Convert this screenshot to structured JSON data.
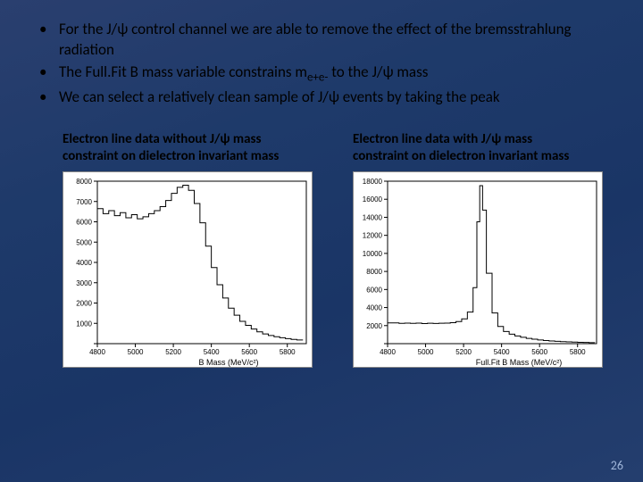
{
  "bullets": [
    "For the J/ψ control channel we are able to remove the effect of the bremsstrahlung radiation",
    "The Full.Fit B mass variable constrains mₑ₊ₑ₋ to the J/ψ mass",
    "We can select a relatively clean sample of J/ψ events by taking the peak"
  ],
  "bullet2_parts": {
    "pre": "The Full.Fit B mass variable constrains m",
    "sub": "e+e-",
    "post": " to the J/ψ mass"
  },
  "left_chart": {
    "caption": "Electron line data without J/ψ mass constraint on dielectron invariant mass",
    "type": "histogram-step",
    "xlim": [
      4800,
      5900
    ],
    "ylim": [
      0,
      8000
    ],
    "xticks": [
      4800,
      5000,
      5200,
      5400,
      5600,
      5800
    ],
    "yticks": [
      0,
      1000,
      2000,
      3000,
      4000,
      5000,
      6000,
      7000,
      8000
    ],
    "ytick_labels": [
      "",
      "1000",
      "2000",
      "3000",
      "4000",
      "5000",
      "6000",
      "7000",
      "8000"
    ],
    "xlabel": "B Mass (MeV/c²)",
    "data": [
      [
        4800,
        6650
      ],
      [
        4830,
        6400
      ],
      [
        4860,
        6550
      ],
      [
        4890,
        6300
      ],
      [
        4920,
        6450
      ],
      [
        4950,
        6200
      ],
      [
        4980,
        6350
      ],
      [
        5010,
        6150
      ],
      [
        5040,
        6250
      ],
      [
        5070,
        6400
      ],
      [
        5100,
        6550
      ],
      [
        5130,
        6750
      ],
      [
        5160,
        7050
      ],
      [
        5190,
        7400
      ],
      [
        5220,
        7700
      ],
      [
        5250,
        7800
      ],
      [
        5280,
        7550
      ],
      [
        5310,
        6900
      ],
      [
        5340,
        5950
      ],
      [
        5370,
        4800
      ],
      [
        5400,
        3750
      ],
      [
        5430,
        2900
      ],
      [
        5460,
        2250
      ],
      [
        5490,
        1750
      ],
      [
        5520,
        1400
      ],
      [
        5550,
        1100
      ],
      [
        5580,
        900
      ],
      [
        5610,
        720
      ],
      [
        5640,
        580
      ],
      [
        5670,
        480
      ],
      [
        5700,
        400
      ],
      [
        5730,
        340
      ],
      [
        5760,
        290
      ],
      [
        5790,
        250
      ],
      [
        5820,
        210
      ],
      [
        5850,
        180
      ],
      [
        5880,
        160
      ]
    ],
    "line_color": "#000000",
    "background_color": "#ffffff",
    "label_fontsize": 9,
    "tick_fontsize": 8
  },
  "right_chart": {
    "caption": "Electron line data with J/ψ mass constraint on dielectron invariant mass",
    "type": "histogram-step",
    "xlim": [
      4800,
      5900
    ],
    "ylim": [
      0,
      18000
    ],
    "xticks": [
      4800,
      5000,
      5200,
      5400,
      5600,
      5800
    ],
    "yticks": [
      0,
      2000,
      4000,
      6000,
      8000,
      10000,
      12000,
      14000,
      16000,
      18000
    ],
    "ytick_labels": [
      "",
      "2000",
      "4000",
      "6000",
      "8000",
      "10000",
      "12000",
      "14000",
      "16000",
      "18000"
    ],
    "xlabel": "Full.Fit B Mass (MeV/c²)",
    "data": [
      [
        4800,
        2300
      ],
      [
        4830,
        2300
      ],
      [
        4860,
        2250
      ],
      [
        4890,
        2280
      ],
      [
        4920,
        2250
      ],
      [
        4950,
        2270
      ],
      [
        4980,
        2230
      ],
      [
        5010,
        2260
      ],
      [
        5040,
        2240
      ],
      [
        5070,
        2260
      ],
      [
        5100,
        2280
      ],
      [
        5130,
        2320
      ],
      [
        5160,
        2450
      ],
      [
        5190,
        2750
      ],
      [
        5220,
        3500
      ],
      [
        5250,
        6200
      ],
      [
        5270,
        13500
      ],
      [
        5285,
        17500
      ],
      [
        5300,
        14800
      ],
      [
        5320,
        7800
      ],
      [
        5350,
        3400
      ],
      [
        5380,
        1900
      ],
      [
        5410,
        1350
      ],
      [
        5440,
        1050
      ],
      [
        5470,
        850
      ],
      [
        5500,
        700
      ],
      [
        5530,
        580
      ],
      [
        5560,
        490
      ],
      [
        5590,
        410
      ],
      [
        5620,
        350
      ],
      [
        5650,
        300
      ],
      [
        5680,
        260
      ],
      [
        5710,
        225
      ],
      [
        5740,
        195
      ],
      [
        5770,
        170
      ],
      [
        5800,
        150
      ],
      [
        5830,
        130
      ],
      [
        5860,
        115
      ],
      [
        5890,
        100
      ]
    ],
    "line_color": "#000000",
    "background_color": "#ffffff",
    "label_fontsize": 9,
    "tick_fontsize": 8
  },
  "page_number": "26",
  "colors": {
    "slide_bg_top": "#2a3f6f",
    "slide_bg_bottom": "#243e6e",
    "text": "#000000",
    "pagenum": "#9fb5d9"
  }
}
